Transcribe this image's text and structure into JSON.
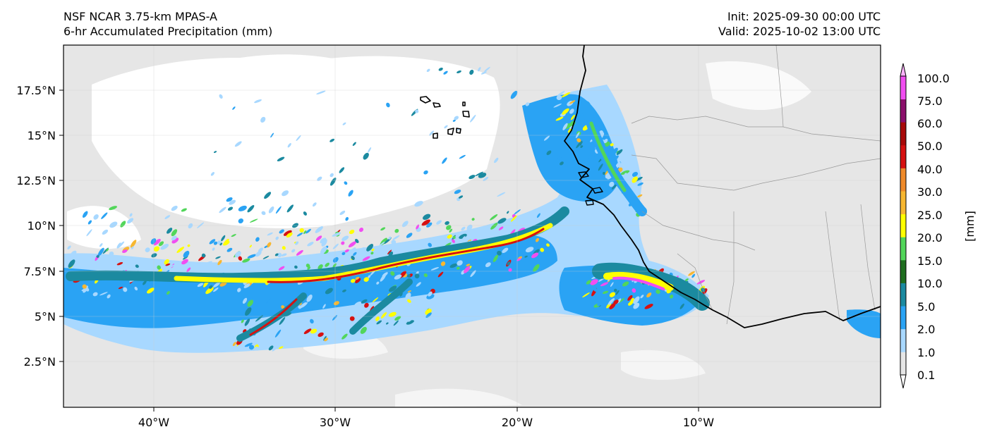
{
  "title": {
    "left_line1": "NSF NCAR 3.75-km MPAS-A",
    "left_line2": "6-hr Accumulated Precipitation (mm)",
    "right_line1": "Init: 2025-09-30 00:00 UTC",
    "right_line2": "Valid: 2025-10-02 13:00 UTC"
  },
  "axes": {
    "lon_ticks": [
      "40°W",
      "30°W",
      "20°W",
      "10°W"
    ],
    "lat_ticks": [
      "17.5°N",
      "15°N",
      "12.5°N",
      "10°N",
      "7.5°N",
      "5°N",
      "2.5°N"
    ]
  },
  "colorbar": {
    "unit_label": "[mm]",
    "levels": [
      "0.1",
      "1.0",
      "2.0",
      "5.0",
      "10.0",
      "15.0",
      "20.0",
      "25.0",
      "30.0",
      "40.0",
      "50.0",
      "60.0",
      "75.0",
      "100.0"
    ],
    "colors": [
      "#e6e6e6",
      "#a8d8ff",
      "#2aa3f4",
      "#1b8aa0",
      "#1f6e1f",
      "#52d65a",
      "#ffff00",
      "#f7b731",
      "#ef8a2a",
      "#d61111",
      "#a80a0a",
      "#8b0f6b",
      "#f14ef1"
    ],
    "over_color": "#ffb3ff",
    "under_color": "#ffffff"
  },
  "map_colors": {
    "land": "#e6e6e6",
    "ocean": "#ffffff",
    "light_rain": "#a8d8ff",
    "rain": "#2aa3f4",
    "teal": "#1b8aa0",
    "green": "#52d65a",
    "yellow": "#ffff00",
    "orange": "#f7b731",
    "red": "#d61111",
    "magenta": "#f14ef1",
    "coast": "#000000",
    "border": "#999999"
  }
}
